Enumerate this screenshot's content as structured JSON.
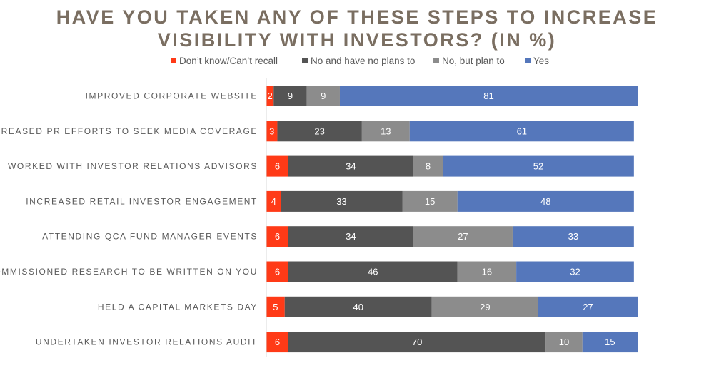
{
  "chart_data": {
    "type": "bar",
    "orientation": "horizontal",
    "stacked": true,
    "title_lines": [
      "HAVE YOU TAKEN ANY OF THESE STEPS TO INCREASE",
      "VISIBILITY WITH INVESTORS? (IN %)"
    ],
    "categories": [
      "IMPROVED CORPORATE WEBSITE",
      "INCREASED PR EFFORTS TO SEEK MEDIA COVERAGE",
      "WORKED WITH INVESTOR RELATIONS ADVISORS",
      "INCREASED RETAIL INVESTOR ENGAGEMENT",
      "ATTENDING QCA FUND MANAGER EVENTS",
      "COMMISSIONED RESEARCH TO BE WRITTEN ON YOU",
      "HELD A CAPITAL MARKETS DAY",
      "UNDERTAKEN INVESTOR RELATIONS AUDIT"
    ],
    "series": [
      {
        "name": "Don’t know/Can’t recall",
        "color": "#ff3a17",
        "values": [
          2,
          3,
          6,
          4,
          6,
          6,
          5,
          6
        ]
      },
      {
        "name": "No and have no plans to",
        "color": "#545454",
        "values": [
          9,
          23,
          34,
          33,
          34,
          46,
          40,
          70
        ]
      },
      {
        "name": "No, but plan to",
        "color": "#8c8c8c",
        "values": [
          9,
          13,
          8,
          15,
          27,
          16,
          29,
          10
        ]
      },
      {
        "name": "Yes",
        "color": "#5577bb",
        "values": [
          81,
          61,
          52,
          48,
          33,
          32,
          27,
          15
        ]
      }
    ],
    "xlim": [
      0,
      101
    ],
    "legend_position": "top",
    "grid": false
  }
}
